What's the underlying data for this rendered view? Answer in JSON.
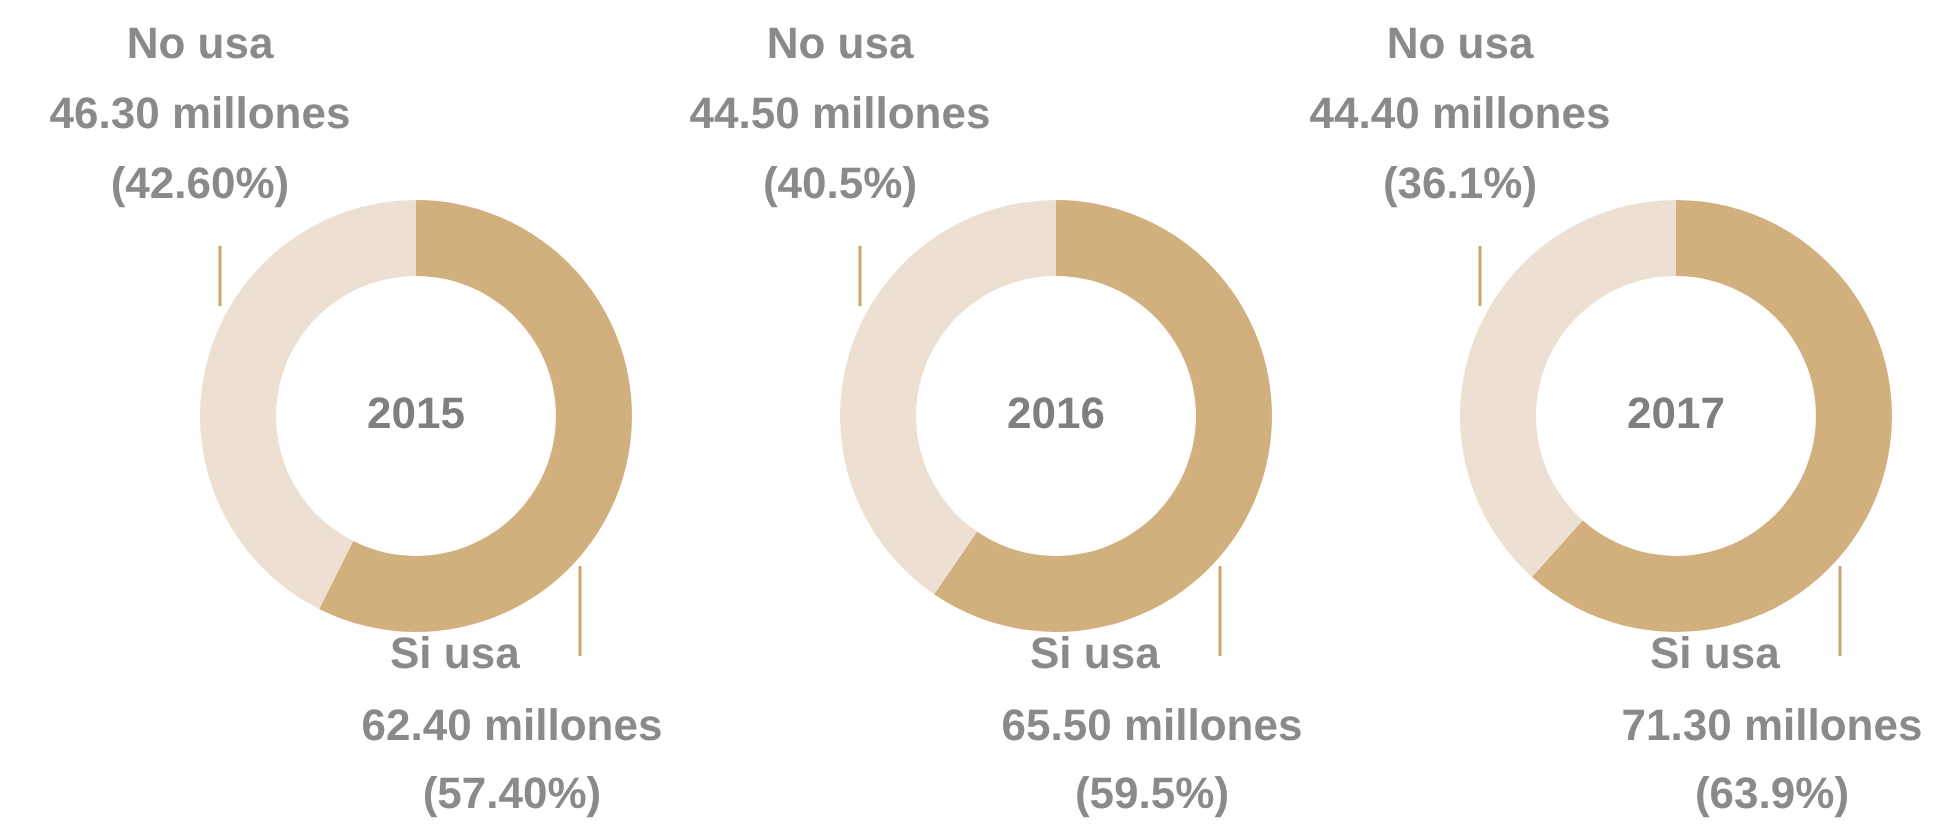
{
  "chart_data": [
    {
      "type": "donut",
      "title": "2015",
      "categories": [
        "Si usa",
        "No usa"
      ],
      "values": [
        62.4,
        46.3
      ],
      "colors": [
        "#d2b07e",
        "#ede0d2"
      ],
      "value_labels": [
        "62.40 millones\n(57.40%)",
        "46.30 millones\n(42.60%)"
      ],
      "legend": false
    },
    {
      "type": "donut",
      "title": "2016",
      "categories": [
        "Si usa",
        "No usa"
      ],
      "values": [
        65.5,
        44.5
      ],
      "colors": [
        "#d2b07e",
        "#ede0d2"
      ],
      "value_labels": [
        "65.50 millones\n(59.5%)",
        "44.50 millones\n(40.5%)"
      ],
      "legend": false
    },
    {
      "type": "donut",
      "title": "2017",
      "categories": [
        "Si usa",
        "No usa"
      ],
      "values": [
        71.3,
        44.4
      ],
      "colors": [
        "#d2b07e",
        "#ede0d2"
      ],
      "value_labels": [
        "71.30 millones\n(63.9%)",
        "44.40 millones\n(36.1%)"
      ],
      "legend": false
    }
  ]
}
